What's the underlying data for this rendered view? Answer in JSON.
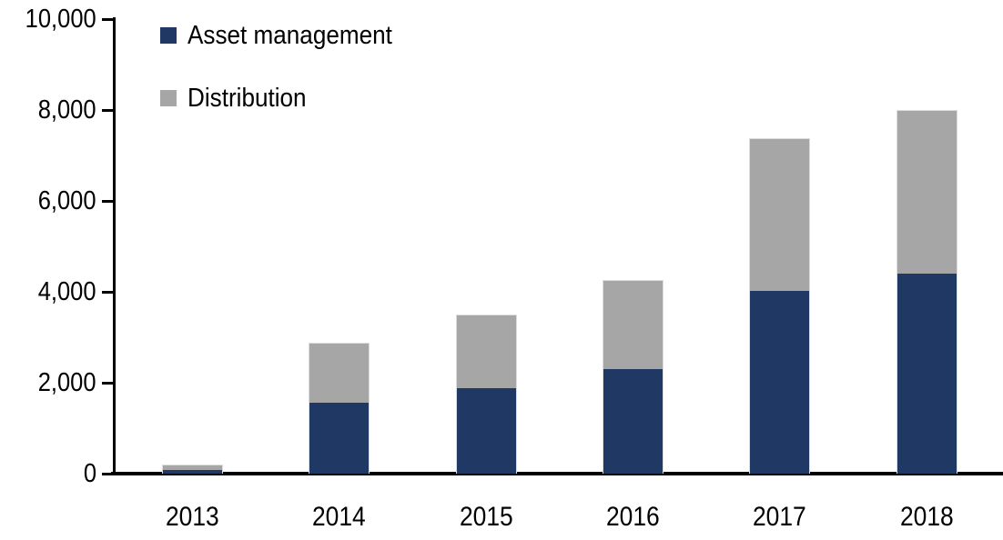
{
  "chart_data": {
    "type": "bar",
    "stacked": true,
    "title": "",
    "xlabel": "",
    "ylabel": "",
    "categories": [
      "2013",
      "2014",
      "2015",
      "2016",
      "2017",
      "2018"
    ],
    "series": [
      {
        "name": "Asset management",
        "color": "#1F3864",
        "values": [
          100,
          1580,
          1900,
          2320,
          4050,
          4430
        ]
      },
      {
        "name": "Distribution",
        "color": "#A6A6A6",
        "values": [
          100,
          1290,
          1600,
          1930,
          3330,
          3570
        ]
      }
    ],
    "totals": [
      200,
      2870,
      3500,
      4250,
      7380,
      8000
    ],
    "ylim": [
      0,
      10000
    ],
    "yticks": [
      0,
      2000,
      4000,
      6000,
      8000,
      10000
    ],
    "ytick_labels": [
      "0",
      "2,000",
      "4,000",
      "6,000",
      "8,000",
      "10,000"
    ],
    "legend_position": "top-left",
    "grid": false,
    "colors": {
      "axis": "#000000",
      "background": "#FFFFFF",
      "bar_outline": "#DCDCDC",
      "asset_management": "#1F3864",
      "distribution": "#A6A6A6"
    }
  }
}
